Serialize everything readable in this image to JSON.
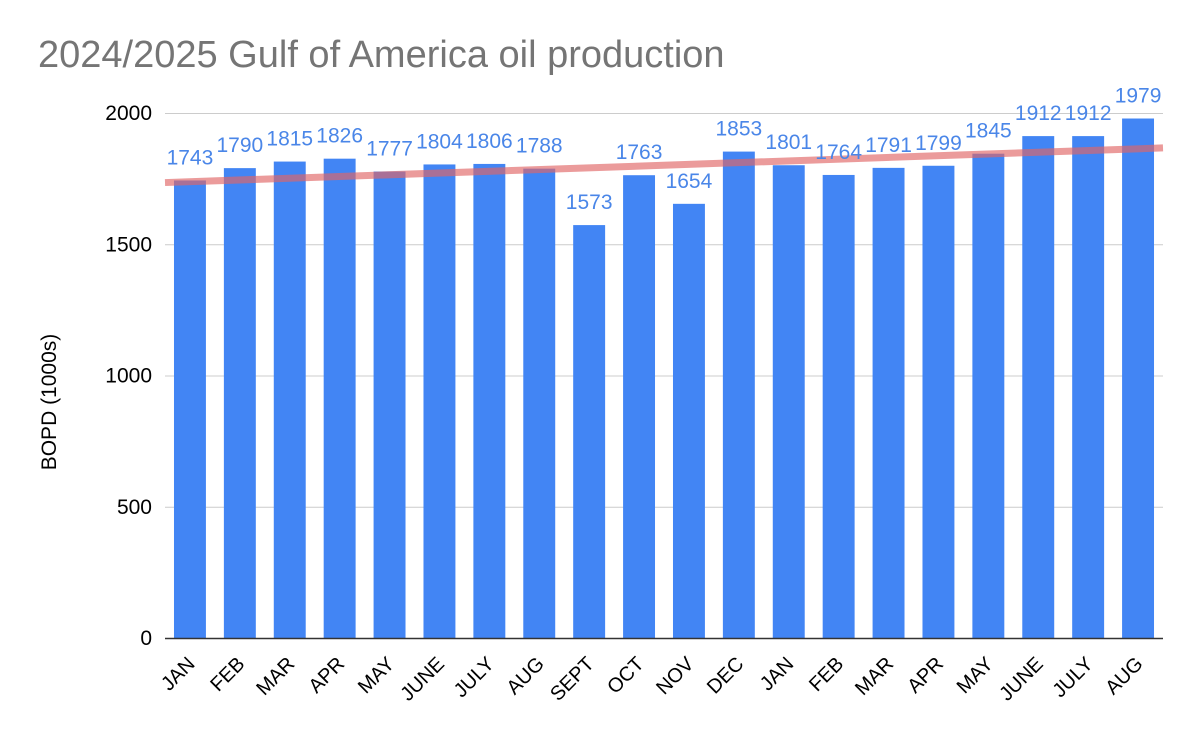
{
  "chart_data": {
    "type": "bar",
    "title": "2024/2025 Gulf of America oil production",
    "xlabel": "",
    "ylabel": "BOPD (1000s)",
    "ylim": [
      0,
      2000
    ],
    "yticks": [
      0,
      500,
      1000,
      1500,
      2000
    ],
    "grid": true,
    "categories": [
      "JAN",
      "FEB",
      "MAR",
      "APR",
      "MAY",
      "JUNE",
      "JULY",
      "AUG",
      "SEPT",
      "OCT",
      "NOV",
      "DEC",
      "JAN",
      "FEB",
      "MAR",
      "APR",
      "MAY",
      "JUNE",
      "JULY",
      "AUG"
    ],
    "series": [
      {
        "values": [
          1743,
          1790,
          1815,
          1826,
          1777,
          1804,
          1806,
          1788,
          1573,
          1763,
          1654,
          1853,
          1801,
          1764,
          1791,
          1799,
          1845,
          1912,
          1912,
          1979
        ],
        "color": "#4285f4"
      }
    ],
    "trendline": {
      "start": 1735,
      "end": 1867,
      "color": "#e06666"
    },
    "label_color": "#4a86e8"
  }
}
